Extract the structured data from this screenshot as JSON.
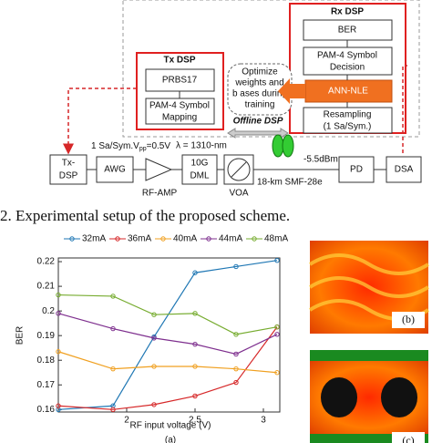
{
  "diagram": {
    "rx_dsp": "Rx DSP",
    "ber": "BER",
    "decision": [
      "PAM-4 Symbol",
      "Decision"
    ],
    "ann": "ANN-NLE",
    "resampling": [
      "Resampling",
      "(1 Sa/Sym.)"
    ],
    "tx_dsp": "Tx DSP",
    "prbs": "PRBS17",
    "mapping": [
      "PAM-4 Symbol",
      "Mapping"
    ],
    "optimize": [
      "Optimize",
      "weights and",
      "b ases during",
      "training"
    ],
    "offline": "Offline DSP",
    "txdsp_box": [
      "Tx-",
      "DSP"
    ],
    "awg": "AWG",
    "rf_amp": "RF-AMP",
    "dml": [
      "10G",
      "DML"
    ],
    "voa": "VOA",
    "pd": "PD",
    "dsa": "DSA",
    "sa_sym": "1 Sa/Sym.V",
    "pp": "pp",
    "vpp": "=0.5V",
    "lambda": "λ = 1310-nm",
    "power": "-5.5dBm",
    "fiber": "18-km SMF-28e"
  },
  "caption": "2.   Experimental setup of the proposed scheme.",
  "eye_labels": [
    "(b)",
    "(c)"
  ],
  "chart_data": {
    "type": "line",
    "xlabel": "RF input voltage (V)",
    "ylabel": "BER",
    "sublabel": "(a)",
    "x": [
      1.5,
      1.9,
      2.2,
      2.5,
      2.8,
      3.1
    ],
    "xlim": [
      1.5,
      3.12
    ],
    "ylim": [
      0.159,
      0.2215
    ],
    "xticks": [
      2,
      2.5,
      3
    ],
    "yticks": [
      0.16,
      0.17,
      0.18,
      0.19,
      0.2,
      0.21,
      0.22
    ],
    "grid": false,
    "series": [
      {
        "name": "32mA",
        "color": "#1f77b4",
        "values": [
          0.16,
          0.1615,
          0.1895,
          0.2155,
          0.218,
          0.2205
        ]
      },
      {
        "name": "36mA",
        "color": "#d62728",
        "values": [
          0.1615,
          0.16,
          0.162,
          0.1655,
          0.171,
          0.1935
        ]
      },
      {
        "name": "40mA",
        "color": "#f0a020",
        "values": [
          0.1835,
          0.1765,
          0.1775,
          0.1775,
          0.1765,
          0.175
        ]
      },
      {
        "name": "44mA",
        "color": "#7e2f8e",
        "values": [
          0.199,
          0.1928,
          0.189,
          0.1865,
          0.1825,
          0.1905
        ]
      },
      {
        "name": "48mA",
        "color": "#77ac30",
        "values": [
          0.2065,
          0.206,
          0.1985,
          0.199,
          0.1905,
          0.1935
        ]
      }
    ]
  }
}
